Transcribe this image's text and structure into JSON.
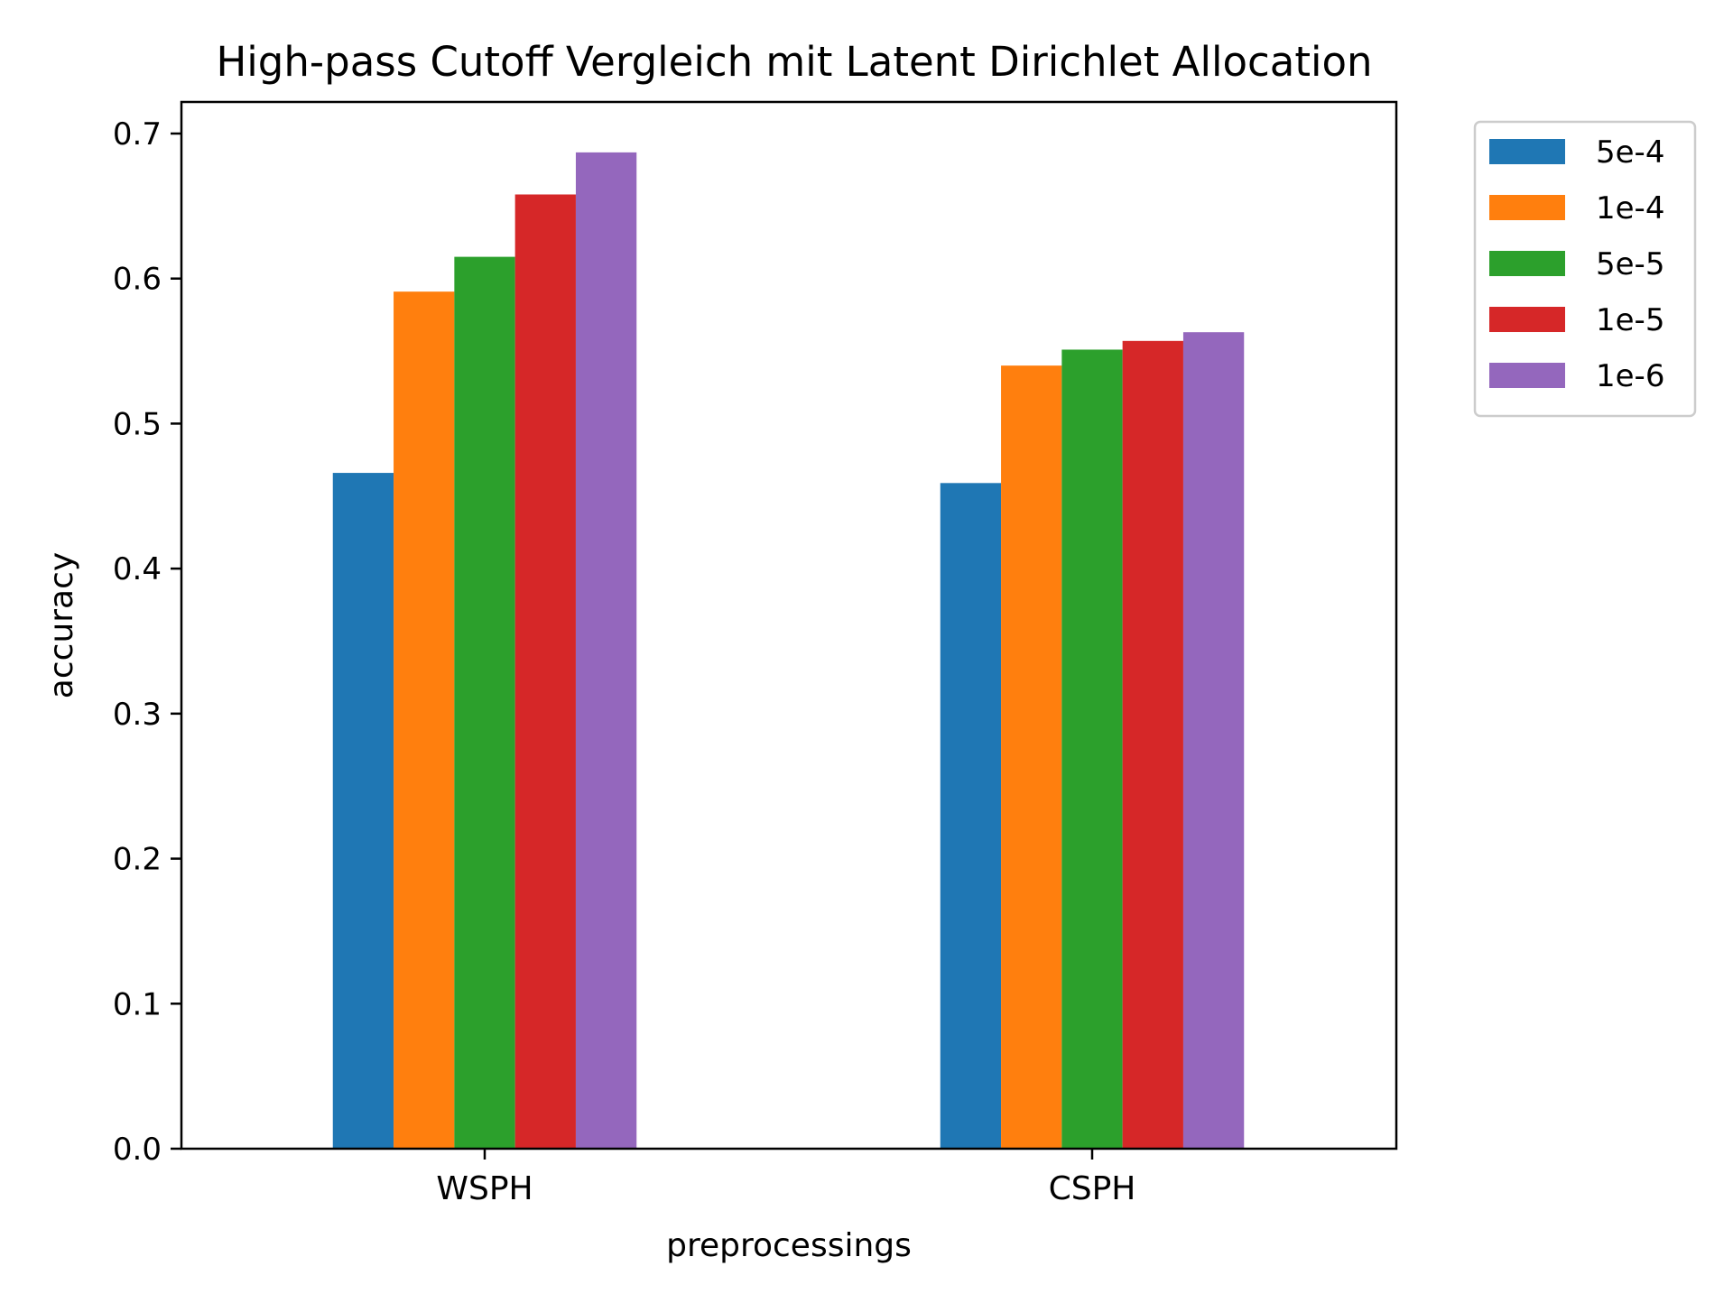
{
  "chart_data": {
    "type": "bar",
    "title": "High-pass Cutoff Vergleich mit Latent Dirichlet Allocation",
    "xlabel": "preprocessings",
    "ylabel": "accuracy",
    "categories": [
      "WSPH",
      "CSPH"
    ],
    "series": [
      {
        "name": "5e-4",
        "color": "#1f77b4",
        "values": [
          0.466,
          0.459
        ]
      },
      {
        "name": "1e-4",
        "color": "#ff7f0e",
        "values": [
          0.591,
          0.54
        ]
      },
      {
        "name": "5e-5",
        "color": "#2ca02c",
        "values": [
          0.615,
          0.551
        ]
      },
      {
        "name": "1e-5",
        "color": "#d62728",
        "values": [
          0.658,
          0.557
        ]
      },
      {
        "name": "1e-6",
        "color": "#9467bd",
        "values": [
          0.687,
          0.563
        ]
      }
    ],
    "ylim": [
      0,
      0.72
    ],
    "yticks": [
      "0.0",
      "0.1",
      "0.2",
      "0.3",
      "0.4",
      "0.5",
      "0.6",
      "0.7"
    ],
    "legend": "outside-right-top",
    "grid": false
  }
}
